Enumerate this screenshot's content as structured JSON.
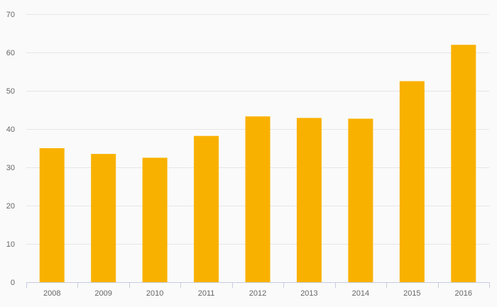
{
  "chart_data": {
    "type": "bar",
    "title": "",
    "xlabel": "",
    "ylabel": "",
    "categories": [
      "2008",
      "2009",
      "2010",
      "2011",
      "2012",
      "2013",
      "2014",
      "2015",
      "2016"
    ],
    "values": [
      35,
      33.5,
      32.5,
      38.2,
      43.3,
      42.9,
      42.7,
      52.5,
      62
    ],
    "ylim": [
      0,
      70
    ],
    "yticks": [
      "0",
      "10",
      "20",
      "30",
      "40",
      "50",
      "60",
      "70"
    ],
    "grid": true,
    "legend": "none",
    "colors": {
      "bar": "#f9b100",
      "grid": "#e6e6e6",
      "axis": "#c8cbe0",
      "tick_text": "#666666",
      "background": "#fafafa"
    }
  }
}
